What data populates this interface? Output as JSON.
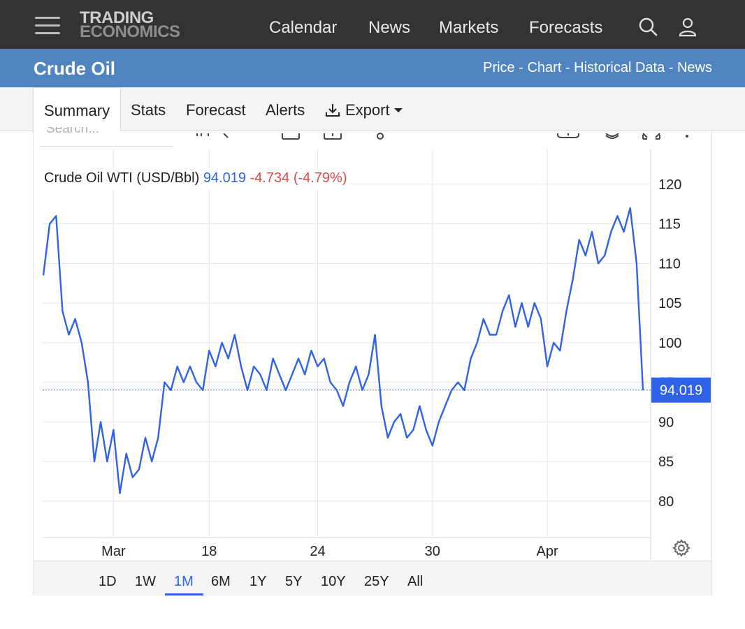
{
  "header": {
    "logo_line1": "TRADING",
    "logo_line2": "ECONOMICS",
    "nav": [
      {
        "label": "Calendar"
      },
      {
        "label": "News"
      },
      {
        "label": "Markets"
      },
      {
        "label": "Forecasts"
      }
    ],
    "icons": [
      "menu-icon",
      "search-icon",
      "user-icon"
    ]
  },
  "titlebar": {
    "title": "Crude Oil",
    "crumbs": [
      "Price",
      "Chart",
      "Historical Data",
      "News"
    ],
    "separator": " - "
  },
  "tabs": [
    {
      "label": "Summary",
      "active": true
    },
    {
      "label": "Stats"
    },
    {
      "label": "Forecast"
    },
    {
      "label": "Alerts"
    },
    {
      "label": "Export",
      "icon": "download-icon"
    }
  ],
  "chart": {
    "search_placeholder": "Search...",
    "legend_name": "Crude Oil WTI (USD/Bbl)",
    "legend_price": "94.019",
    "legend_change": "-4.734 (-4.79%)",
    "price_tag": "94.019",
    "colors": {
      "line": "#2f62e6",
      "down": "#e04848",
      "tag": "#2f62e6",
      "grid": "#e6e6e6"
    }
  },
  "chart_data": {
    "type": "line",
    "series": [
      {
        "values": [
          108.5,
          115,
          116,
          104,
          101,
          103,
          100,
          95,
          85,
          90,
          85,
          89,
          81,
          86,
          83,
          84,
          88,
          85,
          88,
          95,
          94,
          97,
          95,
          97,
          95,
          94,
          99,
          97,
          100,
          98,
          101,
          97,
          94,
          97,
          96,
          94,
          98,
          96,
          94,
          96,
          98,
          96,
          99,
          97,
          98,
          95,
          94,
          92,
          95,
          97,
          94,
          96,
          101,
          92,
          88,
          90,
          91,
          88,
          89,
          92,
          89,
          87,
          90,
          92,
          94,
          95,
          94,
          98,
          100,
          103,
          101,
          101,
          104,
          106,
          102,
          105,
          102,
          105,
          103,
          97,
          100,
          99,
          104,
          108,
          113,
          111,
          114,
          110,
          111,
          114,
          116,
          114,
          117,
          110,
          94
        ]
      }
    ],
    "x_tick_labels": [
      "Mar",
      "18",
      "24",
      "30",
      "Apr"
    ],
    "x_tick_index": [
      11,
      26,
      43,
      61,
      79
    ],
    "y_ticks": [
      80,
      85,
      90,
      95,
      100,
      105,
      110,
      115,
      120
    ],
    "ylim": [
      75.4,
      124.4
    ],
    "last_value": 94.019,
    "grid": true
  },
  "periods": [
    {
      "label": "1D"
    },
    {
      "label": "1W"
    },
    {
      "label": "1M",
      "active": true
    },
    {
      "label": "6M"
    },
    {
      "label": "1Y"
    },
    {
      "label": "5Y"
    },
    {
      "label": "10Y"
    },
    {
      "label": "25Y"
    },
    {
      "label": "All"
    }
  ]
}
